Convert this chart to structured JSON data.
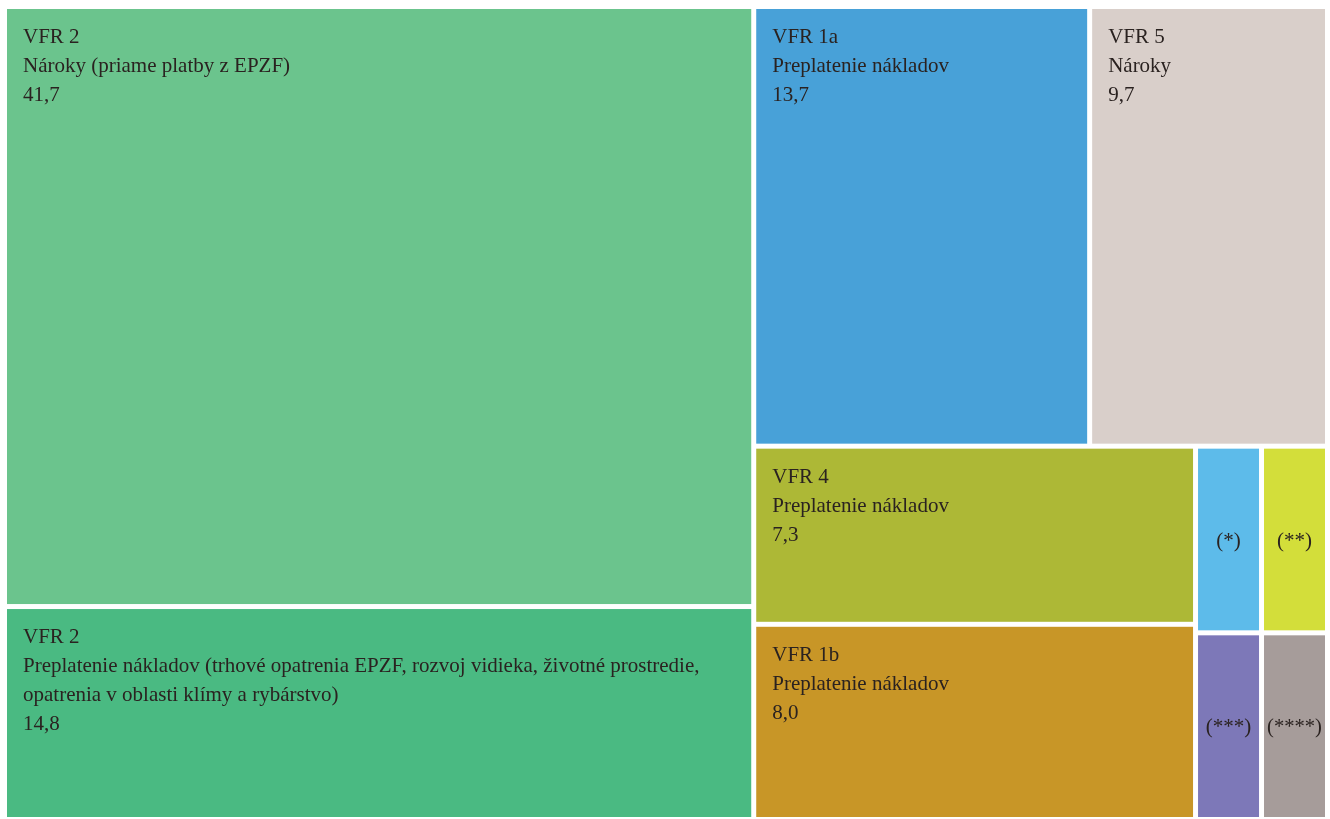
{
  "chart_data": {
    "type": "other",
    "categories": [
      "VFR 2\nNároky (priame platby z EPZF)",
      "VFR 2\nPreplatenie nákladov (trhové opatrenia EPZF, rozvoj vidieka, životné prostredie, opatrenia v oblasti klímy a rybárstvo)",
      "VFR 1a\nPreplatenie nákladov",
      "VFR 5\nNároky",
      "VFR 4\nPreplatenie nákladov",
      "VFR 1b\nPreplatenie nákladov",
      "(*)",
      "(**)",
      "(***)",
      "(****)"
    ],
    "values": [
      41.7,
      14.8,
      13.7,
      9.7,
      7.3,
      8.0,
      null,
      null,
      null,
      null
    ],
    "value_labels": [
      "41,7",
      "14,8",
      "13,7",
      "9,7",
      "7,3",
      "8,0",
      null,
      null,
      null,
      null
    ],
    "colors": [
      "#6bc48d",
      "#4aba82",
      "#48a1d8",
      "#d9cfca",
      "#adb836",
      "#c89627",
      "#5dbbea",
      "#d3de3a",
      "#7d78b8",
      "#a69c9a"
    ]
  }
}
